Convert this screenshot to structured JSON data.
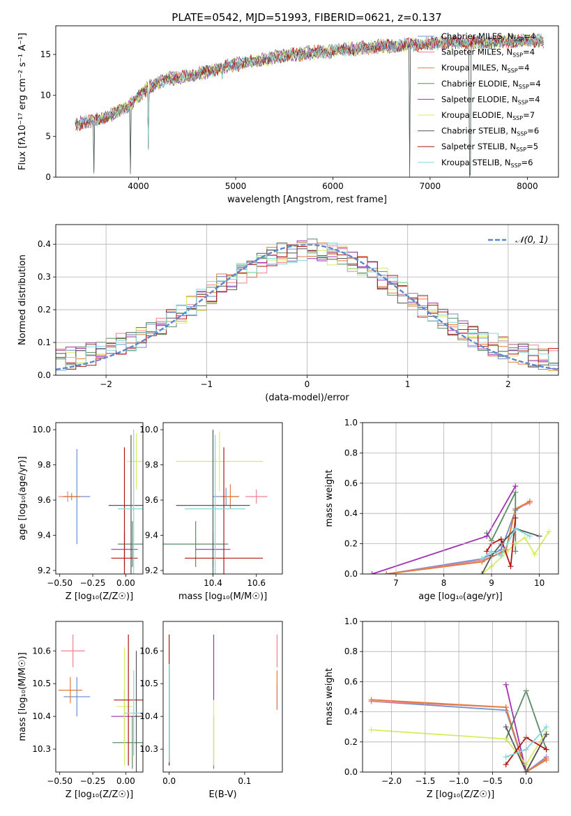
{
  "title": "PLATE=0542, MJD=51993, FIBERID=0621, z=0.137",
  "colors": {
    "chabrier_miles": "#6f8fcf",
    "salpeter_miles": "#f08090",
    "kroupa_miles": "#e07b39",
    "chabrier_elodie": "#5a8a65",
    "salpeter_elodie": "#a030b0",
    "kroupa_elodie": "#d4ee60",
    "chabrier_stelib": "#555555",
    "salpeter_stelib": "#b01515",
    "kroupa_stelib": "#80d8d8",
    "normal_curve": "#5b85d0",
    "grid": "#b0b0b0"
  },
  "legend_labels": [
    {
      "pre": "Chabrier MILES, N",
      "sub": "SSP",
      "post": "=4"
    },
    {
      "pre": "Salpeter MILES, N",
      "sub": "SSP",
      "post": "=4"
    },
    {
      "pre": "Kroupa MILES, N",
      "sub": "SSP",
      "post": "=4"
    },
    {
      "pre": "Chabrier ELODIE, N",
      "sub": "SSP",
      "post": "=4"
    },
    {
      "pre": "Salpeter ELODIE, N",
      "sub": "SSP",
      "post": "=4"
    },
    {
      "pre": "Kroupa ELODIE, N",
      "sub": "SSP",
      "post": "=7"
    },
    {
      "pre": "Chabrier STELIB, N",
      "sub": "SSP",
      "post": "=6"
    },
    {
      "pre": "Salpeter STELIB, N",
      "sub": "SSP",
      "post": "=5"
    },
    {
      "pre": "Kroupa STELIB, N",
      "sub": "SSP",
      "post": "=6"
    }
  ],
  "chart_data": [
    {
      "id": "spectrum",
      "type": "line",
      "xlabel": "wavelength [Angstrom, rest frame]",
      "ylabel": "Flux [fλ10⁻¹⁷ erg cm⁻² s⁻¹ A⁻¹]",
      "xlim": [
        3150,
        8320
      ],
      "ylim": [
        0,
        18.5
      ],
      "xticks": [
        4000,
        5000,
        6000,
        7000,
        8000
      ],
      "yticks": [
        0,
        5,
        10,
        15
      ],
      "grid": false,
      "legend": "top-right",
      "continuum": {
        "x": [
          3350,
          3500,
          3700,
          3900,
          4100,
          4300,
          4600,
          4900,
          5200,
          5600,
          6000,
          6400,
          6800,
          7200,
          7600,
          8000,
          8200
        ],
        "y": [
          6.5,
          6.8,
          7.5,
          8.7,
          11.0,
          12.0,
          12.5,
          13.6,
          14.2,
          15.0,
          15.4,
          15.9,
          16.2,
          16.5,
          16.4,
          16.7,
          16.6
        ]
      },
      "absorption": [
        {
          "x": 3540,
          "y": 0.2
        },
        {
          "x": 3920,
          "y": 0.2
        },
        {
          "x": 4100,
          "y": 3.3
        },
        {
          "x": 4860,
          "y": 11.8
        },
        {
          "x": 6790,
          "y": 0.0
        },
        {
          "x": 7410,
          "y": 0.0
        }
      ],
      "series_count": 9
    },
    {
      "id": "residuals",
      "type": "histogram",
      "xlabel": "(data-model)/error",
      "ylabel": "Normed distribution",
      "xlim": [
        -2.5,
        2.5
      ],
      "ylim": [
        0,
        0.46
      ],
      "xticks": [
        -2,
        -1,
        0,
        1,
        2
      ],
      "yticks": [
        0.0,
        0.1,
        0.2,
        0.3,
        0.4
      ],
      "grid": true,
      "legend": "top-right",
      "reference_label": "𝒩(0, 1)",
      "bin_width": 0.1,
      "series_count": 9
    },
    {
      "id": "age_vs_Z",
      "type": "errorbar",
      "xlabel": "Z [log₁₀(Z/Z☉)]",
      "ylabel": "age  [log₁₀(age/yr)]",
      "xlim": [
        -0.53,
        0.13
      ],
      "ylim": [
        9.18,
        10.04
      ],
      "xticks": [
        -0.5,
        -0.25,
        0.0
      ],
      "yticks": [
        9.2,
        9.4,
        9.6,
        9.8,
        10.0
      ],
      "grid": false,
      "points": [
        {
          "series": "chabrier_miles",
          "x": -0.37,
          "xerr": 0.1,
          "y": 9.62,
          "yerr": 0.27
        },
        {
          "series": "salpeter_miles",
          "x": -0.44,
          "xerr": 0.07,
          "y": 9.62,
          "yerr": 0.03
        },
        {
          "series": "kroupa_miles",
          "x": -0.41,
          "xerr": 0.07,
          "y": 9.62,
          "yerr": 0.02
        },
        {
          "series": "chabrier_elodie",
          "x": 0.05,
          "xerr": 0.11,
          "y": 9.35,
          "yerr": 0.13
        },
        {
          "series": "salpeter_elodie",
          "x": -0.01,
          "xerr": 0.1,
          "y": 9.32,
          "yerr": 0.1
        },
        {
          "series": "kroupa_elodie",
          "x": 0.08,
          "xerr": 0.07,
          "y": 9.82,
          "yerr": 0.16
        },
        {
          "series": "chabrier_stelib",
          "x": 0.04,
          "xerr": 0.17,
          "y": 9.57,
          "yerr": 0.4
        },
        {
          "series": "salpeter_stelib",
          "x": -0.01,
          "xerr": 0.1,
          "y": 9.27,
          "yerr": 0.63
        },
        {
          "series": "kroupa_stelib",
          "x": 0.06,
          "xerr": 0.12,
          "y": 9.55,
          "yerr": 0.45
        }
      ]
    },
    {
      "id": "age_vs_mass",
      "type": "errorbar",
      "xlabel": "mass [log₁₀(M/M☉)]",
      "ylabel": "",
      "xlim": [
        10.17,
        10.72
      ],
      "ylim": [
        9.18,
        10.04
      ],
      "xticks": [
        10.4,
        10.6
      ],
      "yticks": [
        9.2,
        9.4,
        9.6,
        9.8,
        10.0
      ],
      "grid": false,
      "points": [
        {
          "series": "chabrier_miles",
          "x": 10.46,
          "xerr": 0.06,
          "y": 9.62,
          "yerr": 0.05
        },
        {
          "series": "salpeter_miles",
          "x": 10.6,
          "xerr": 0.05,
          "y": 9.62,
          "yerr": 0.04
        },
        {
          "series": "kroupa_miles",
          "x": 10.48,
          "xerr": 0.04,
          "y": 9.62,
          "yerr": 0.07
        },
        {
          "series": "chabrier_elodie",
          "x": 10.32,
          "xerr": 0.15,
          "y": 9.35,
          "yerr": 0.13
        },
        {
          "series": "salpeter_elodie",
          "x": 10.4,
          "xerr": 0.08,
          "y": 9.32,
          "yerr": 0.1
        },
        {
          "series": "kroupa_elodie",
          "x": 10.43,
          "xerr": 0.2,
          "y": 9.82,
          "yerr": 0.17
        },
        {
          "series": "chabrier_stelib",
          "x": 10.4,
          "xerr": 0.17,
          "y": 9.57,
          "yerr": 0.43
        },
        {
          "series": "salpeter_stelib",
          "x": 10.45,
          "xerr": 0.18,
          "y": 9.27,
          "yerr": 0.63
        },
        {
          "series": "kroupa_stelib",
          "x": 10.41,
          "xerr": 0.14,
          "y": 9.55,
          "yerr": 0.42
        }
      ]
    },
    {
      "id": "weight_vs_age",
      "type": "line",
      "xlabel": "age  [log₁₀(age/yr)]",
      "ylabel": "mass weight",
      "xlim": [
        6.3,
        10.4
      ],
      "ylim": [
        0,
        1
      ],
      "xticks": [
        7,
        8,
        9,
        10
      ],
      "yticks": [
        0.0,
        0.2,
        0.4,
        0.6,
        0.8,
        1.0
      ],
      "grid": true,
      "series": [
        {
          "series": "chabrier_miles",
          "x": [
            6.8,
            8.8,
            9.2,
            9.5,
            9.8
          ],
          "y": [
            0.0,
            0.1,
            0.16,
            0.42,
            0.48
          ]
        },
        {
          "series": "salpeter_miles",
          "x": [
            6.8,
            8.8,
            9.3,
            9.5,
            9.8
          ],
          "y": [
            0.0,
            0.09,
            0.15,
            0.43,
            0.47
          ]
        },
        {
          "series": "kroupa_miles",
          "x": [
            6.8,
            8.8,
            9.3,
            9.5,
            9.8
          ],
          "y": [
            0.0,
            0.08,
            0.16,
            0.43,
            0.48
          ]
        },
        {
          "series": "chabrier_elodie",
          "x": [
            8.9,
            9.0,
            9.5,
            9.5
          ],
          "y": [
            0.27,
            0.22,
            0.54,
            0.15
          ]
        },
        {
          "series": "salpeter_elodie",
          "x": [
            6.5,
            8.9,
            9.5
          ],
          "y": [
            0.0,
            0.25,
            0.58
          ]
        },
        {
          "series": "kroupa_elodie",
          "x": [
            8.8,
            9.0,
            9.3,
            9.5,
            9.7,
            9.9,
            10.2
          ],
          "y": [
            0.0,
            0.05,
            0.14,
            0.2,
            0.24,
            0.13,
            0.28
          ]
        },
        {
          "series": "chabrier_stelib",
          "x": [
            8.8,
            9.0,
            9.2,
            9.5,
            10.0
          ],
          "y": [
            0.0,
            0.12,
            0.2,
            0.3,
            0.25
          ]
        },
        {
          "series": "salpeter_stelib",
          "x": [
            8.9,
            9.0,
            9.2,
            9.4,
            9.5
          ],
          "y": [
            0.15,
            0.2,
            0.23,
            0.05,
            0.37
          ]
        },
        {
          "series": "kroupa_stelib",
          "x": [
            8.8,
            9.0,
            9.2,
            9.5,
            9.8
          ],
          "y": [
            0.1,
            0.15,
            0.12,
            0.3,
            0.25
          ]
        }
      ]
    },
    {
      "id": "mass_vs_Z",
      "type": "errorbar",
      "xlabel": "Z [log₁₀(Z/Z☉)]",
      "ylabel": "mass [log₁₀(M/M☉)]",
      "xlim": [
        -0.53,
        0.13
      ],
      "ylim": [
        10.23,
        10.69
      ],
      "xticks": [
        -0.5,
        -0.25,
        0.0
      ],
      "yticks": [
        10.3,
        10.4,
        10.5,
        10.6
      ],
      "grid": false,
      "points": [
        {
          "series": "chabrier_miles",
          "x": -0.37,
          "xerr": 0.1,
          "y": 10.46,
          "yerr": 0.06
        },
        {
          "series": "salpeter_miles",
          "x": -0.4,
          "xerr": 0.09,
          "y": 10.6,
          "yerr": 0.05
        },
        {
          "series": "kroupa_miles",
          "x": -0.42,
          "xerr": 0.09,
          "y": 10.48,
          "yerr": 0.04
        },
        {
          "series": "chabrier_elodie",
          "x": 0.05,
          "xerr": 0.15,
          "y": 10.32,
          "yerr": 0.08
        },
        {
          "series": "salpeter_elodie",
          "x": -0.01,
          "xerr": 0.1,
          "y": 10.4,
          "yerr": 0.08
        },
        {
          "series": "kroupa_elodie",
          "x": -0.01,
          "xerr": 0.06,
          "y": 10.43,
          "yerr": 0.18
        },
        {
          "series": "chabrier_stelib",
          "x": 0.08,
          "xerr": 0.04,
          "y": 10.4,
          "yerr": 0.2
        },
        {
          "series": "salpeter_stelib",
          "x": 0.02,
          "xerr": 0.11,
          "y": 10.45,
          "yerr": 0.2
        },
        {
          "series": "kroupa_stelib",
          "x": 0.06,
          "xerr": 0.07,
          "y": 10.41,
          "yerr": 0.13
        }
      ]
    },
    {
      "id": "mass_vs_ebv",
      "type": "errorbar",
      "xlabel": "E(B-V)",
      "ylabel": "",
      "xlim": [
        -0.008,
        0.15
      ],
      "ylim": [
        10.23,
        10.69
      ],
      "xticks": [
        0.0,
        0.1
      ],
      "yticks": [
        10.3,
        10.4,
        10.5,
        10.6
      ],
      "grid": false,
      "points": [
        {
          "series": "chabrier_miles",
          "x": 0.143,
          "y": 10.46,
          "yerr": 0.04
        },
        {
          "series": "salpeter_miles",
          "x": 0.143,
          "y": 10.6,
          "yerr": 0.05
        },
        {
          "series": "kroupa_miles",
          "x": 0.143,
          "y": 10.48,
          "yerr": 0.06
        },
        {
          "series": "chabrier_elodie",
          "x": 0.059,
          "y": 10.32,
          "yerr": 0.08
        },
        {
          "series": "salpeter_elodie",
          "x": 0.059,
          "y": 10.55,
          "yerr": 0.1
        },
        {
          "series": "kroupa_elodie",
          "x": 0.059,
          "y": 10.35,
          "yerr": 0.1
        },
        {
          "series": "chabrier_stelib",
          "x": 0.0,
          "y": 10.4,
          "yerr": 0.15
        },
        {
          "series": "salpeter_stelib",
          "x": 0.0,
          "y": 10.45,
          "yerr": 0.2
        },
        {
          "series": "kroupa_stelib",
          "x": 0.0,
          "y": 10.41,
          "yerr": 0.15
        }
      ]
    },
    {
      "id": "weight_vs_Z",
      "type": "line",
      "xlabel": "Z [log₁₀(Z/Z☉)]",
      "ylabel": "mass weight",
      "xlim": [
        -2.43,
        0.48
      ],
      "ylim": [
        0,
        1
      ],
      "xticks": [
        -2.0,
        -1.5,
        -1.0,
        -0.5,
        0.0
      ],
      "yticks": [
        0.0,
        0.2,
        0.4,
        0.6,
        0.8,
        1.0
      ],
      "grid": true,
      "series": [
        {
          "series": "chabrier_miles",
          "x": [
            -2.3,
            -0.3,
            0.0,
            0.3
          ],
          "y": [
            0.47,
            0.41,
            0.0,
            0.1
          ]
        },
        {
          "series": "salpeter_miles",
          "x": [
            -2.3,
            -0.3,
            0.0,
            0.3
          ],
          "y": [
            0.47,
            0.43,
            0.0,
            0.09
          ]
        },
        {
          "series": "kroupa_miles",
          "x": [
            -2.3,
            -0.3,
            0.0,
            0.3
          ],
          "y": [
            0.48,
            0.43,
            0.0,
            0.08
          ]
        },
        {
          "series": "chabrier_elodie",
          "x": [
            -0.3,
            0.0,
            0.3
          ],
          "y": [
            0.22,
            0.54,
            0.15
          ]
        },
        {
          "series": "salpeter_elodie",
          "x": [
            -0.3,
            0.0,
            0.3
          ],
          "y": [
            0.58,
            0.0,
            0.25
          ]
        },
        {
          "series": "kroupa_elodie",
          "x": [
            -2.3,
            -0.3,
            0.0,
            0.3
          ],
          "y": [
            0.28,
            0.22,
            0.05,
            0.27
          ]
        },
        {
          "series": "chabrier_stelib",
          "x": [
            -0.3,
            0.0,
            0.3
          ],
          "y": [
            0.3,
            0.0,
            0.25
          ]
        },
        {
          "series": "salpeter_stelib",
          "x": [
            -0.3,
            0.0,
            0.3
          ],
          "y": [
            0.05,
            0.23,
            0.15
          ]
        },
        {
          "series": "kroupa_stelib",
          "x": [
            -0.3,
            0.0,
            0.3
          ],
          "y": [
            0.1,
            0.15,
            0.3
          ]
        }
      ]
    }
  ]
}
